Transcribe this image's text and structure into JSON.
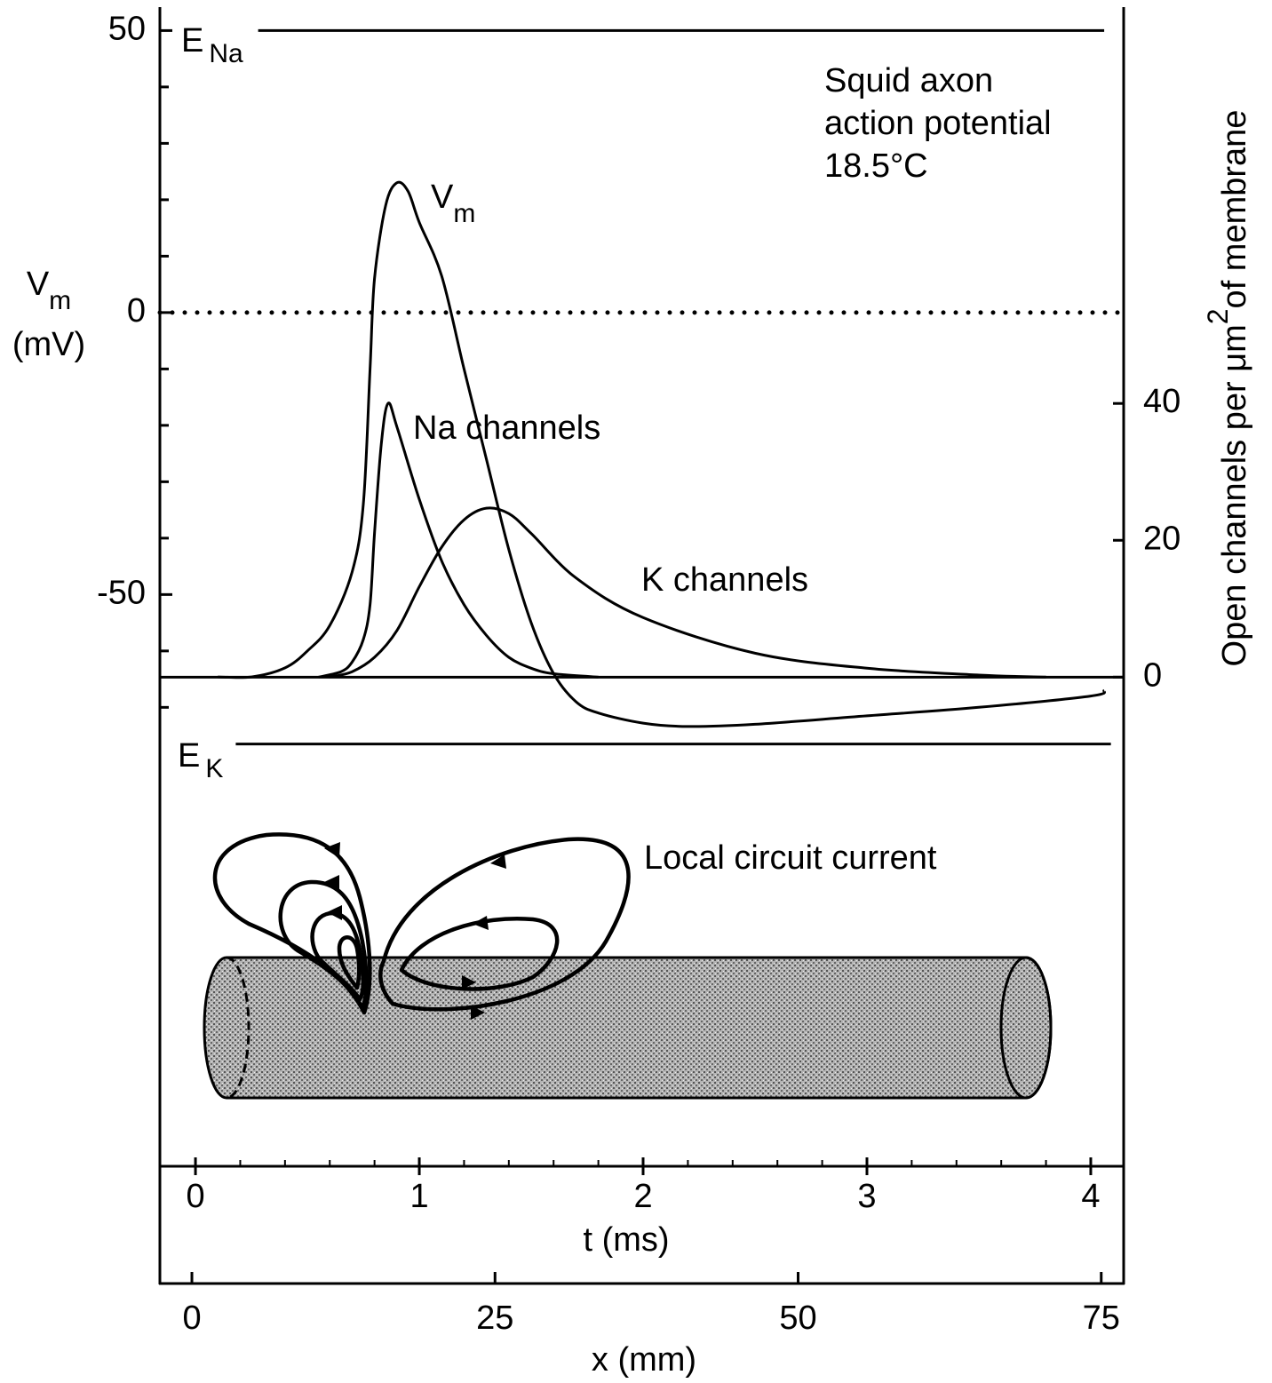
{
  "chart_data": {
    "type": "line",
    "ylabel": {
      "text": "V",
      "subscript": "m",
      "unit": "(mV)"
    },
    "y2label": {
      "text": "Open channels per μm",
      "superscript": "2",
      "rest": "of membrane"
    },
    "xlabel": "t (ms)",
    "x2label": "x (mm)",
    "xlim": [
      -0.159,
      4.147
    ],
    "xticks": [
      0,
      1,
      2,
      3,
      4
    ],
    "xminor": [
      0.2,
      0.4,
      0.6,
      0.8,
      1.2,
      1.4,
      1.6,
      1.8,
      2.2,
      2.4,
      2.6,
      2.8,
      3.2,
      3.4,
      3.6,
      3.8
    ],
    "x2lim": [
      -2.64,
      76.85
    ],
    "x2ticks": [
      0,
      25,
      50,
      75
    ],
    "ylim": [
      -172,
      54
    ],
    "yticks": [
      -50,
      0,
      50
    ],
    "yminor": [
      -70,
      -60,
      -40,
      -30,
      -20,
      -10,
      10,
      20,
      30,
      40
    ],
    "y2lim": [
      -88.5,
      97.8
    ],
    "y2ticks": [
      0,
      20,
      40
    ],
    "series": [
      {
        "name": "V",
        "subscript": "m",
        "axis": "y",
        "color": "#000000",
        "x": [
          0.1,
          0.25,
          0.4,
          0.5,
          0.6,
          0.7,
          0.75,
          0.78,
          0.8,
          0.85,
          0.9,
          0.95,
          1.0,
          1.1,
          1.2,
          1.3,
          1.4,
          1.5,
          1.6,
          1.7,
          1.8,
          2.0,
          2.2,
          2.5,
          3.0,
          3.5,
          4.0,
          4.06
        ],
        "values": [
          -64.6,
          -64.6,
          -63,
          -60,
          -55.5,
          -46,
          -34,
          -10,
          6,
          19,
          23,
          21.5,
          16,
          6.5,
          -10,
          -26,
          -42,
          -55,
          -64,
          -69,
          -71,
          -72.8,
          -73.4,
          -73,
          -71.5,
          -70,
          -68,
          -67
        ]
      },
      {
        "name": "Na channels",
        "axis": "y2",
        "color": "#000000",
        "x": [
          0.55,
          0.65,
          0.7,
          0.75,
          0.78,
          0.8,
          0.83,
          0.86,
          0.9,
          1.0,
          1.1,
          1.2,
          1.3,
          1.4,
          1.5,
          1.6,
          1.8
        ],
        "values": [
          0,
          0.8,
          2.2,
          5.5,
          10.6,
          21,
          34,
          40,
          36.6,
          26,
          17,
          10.6,
          6.1,
          2.9,
          1.3,
          0.5,
          0
        ]
      },
      {
        "name": "K channels",
        "axis": "y2",
        "color": "#000000",
        "x": [
          0.6,
          0.7,
          0.8,
          0.9,
          1.0,
          1.1,
          1.2,
          1.3,
          1.4,
          1.5,
          1.7,
          2.0,
          2.5,
          3.0,
          3.5,
          3.8
        ],
        "values": [
          0,
          0.8,
          2.9,
          6.8,
          13.2,
          19,
          23,
          24.7,
          23.9,
          21,
          14.5,
          8.7,
          3.5,
          1.3,
          0.3,
          0
        ]
      }
    ],
    "reference_lines": [
      {
        "label": "E",
        "subscript": "Na",
        "value": 50,
        "t_range": [
          0.28,
          4.06
        ]
      },
      {
        "label": "E",
        "subscript": "K",
        "value": -76.5,
        "t_range": [
          0.18,
          4.09
        ]
      }
    ],
    "hlines": [
      {
        "axis": "y",
        "value": 0,
        "style": "dotted"
      },
      {
        "axis": "y2",
        "value": 0,
        "style": "solid"
      }
    ],
    "annotations": [
      "Squid axon",
      "action potential",
      "18.5°C",
      "Local circuit current"
    ]
  }
}
